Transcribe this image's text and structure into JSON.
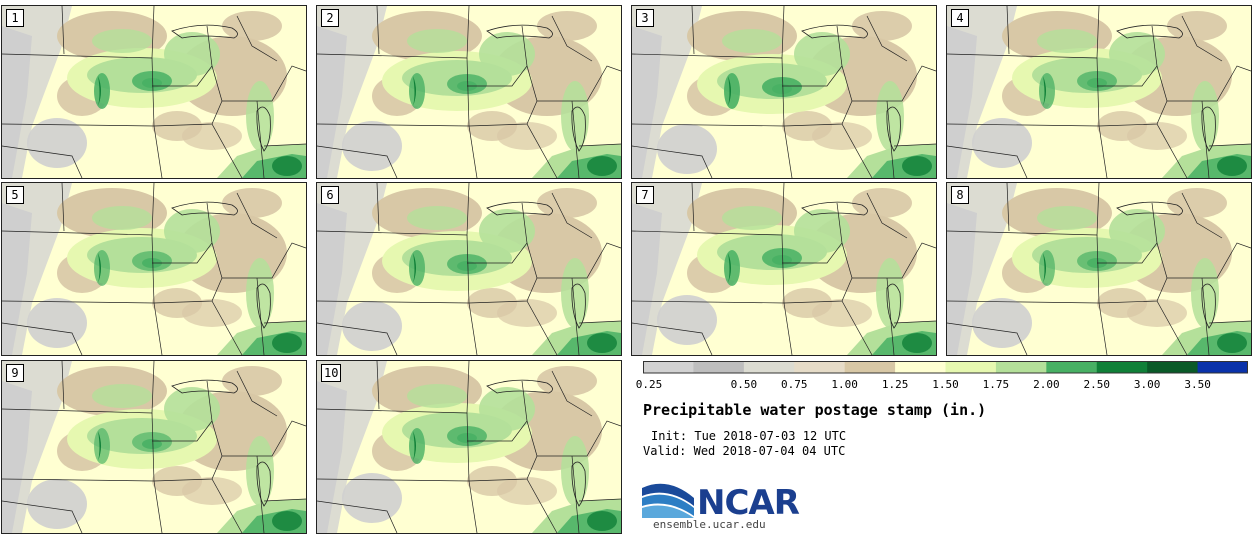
{
  "title": "Precipitable water postage stamp (in.)",
  "init_label": "Init:",
  "init_time": "Tue 2018-07-03 12 UTC",
  "valid_label": "Valid:",
  "valid_time": "Wed 2018-07-04 04 UTC",
  "logo": {
    "name": "NCAR",
    "url": "ensemble.ucar.edu"
  },
  "members": [
    {
      "number": "1",
      "core_intensity": 0.85
    },
    {
      "number": "2",
      "core_intensity": 0.8
    },
    {
      "number": "3",
      "core_intensity": 0.9
    },
    {
      "number": "4",
      "core_intensity": 0.75
    },
    {
      "number": "5",
      "core_intensity": 0.7
    },
    {
      "number": "6",
      "core_intensity": 0.8
    },
    {
      "number": "7",
      "core_intensity": 0.85
    },
    {
      "number": "8",
      "core_intensity": 0.7
    },
    {
      "number": "9",
      "core_intensity": 0.65
    },
    {
      "number": "10",
      "core_intensity": 0.8
    }
  ],
  "colorbar": {
    "labels": [
      "0.25",
      "0.50",
      "0.75",
      "1.00",
      "1.25",
      "1.50",
      "1.75",
      "2.00",
      "2.50",
      "3.00",
      "3.50"
    ],
    "colors": [
      "#d2d2d2",
      "#bebebe",
      "#dcdcd2",
      "#e6dcc8",
      "#d8c8a6",
      "#ffffd2",
      "#e6f8b0",
      "#b4e09a",
      "#48b064",
      "#108038",
      "#0a5a28",
      "#0a32aa"
    ]
  },
  "map_colors": {
    "very_dry": "#cfcfcf",
    "dry_gray": "#dcdcd2",
    "tan": "#d8c8a6",
    "pale_yellow": "#ffffd2",
    "light_green": "#e6f8b0",
    "green": "#b4e09a",
    "mid_green": "#48b064",
    "dark_green": "#108038"
  }
}
